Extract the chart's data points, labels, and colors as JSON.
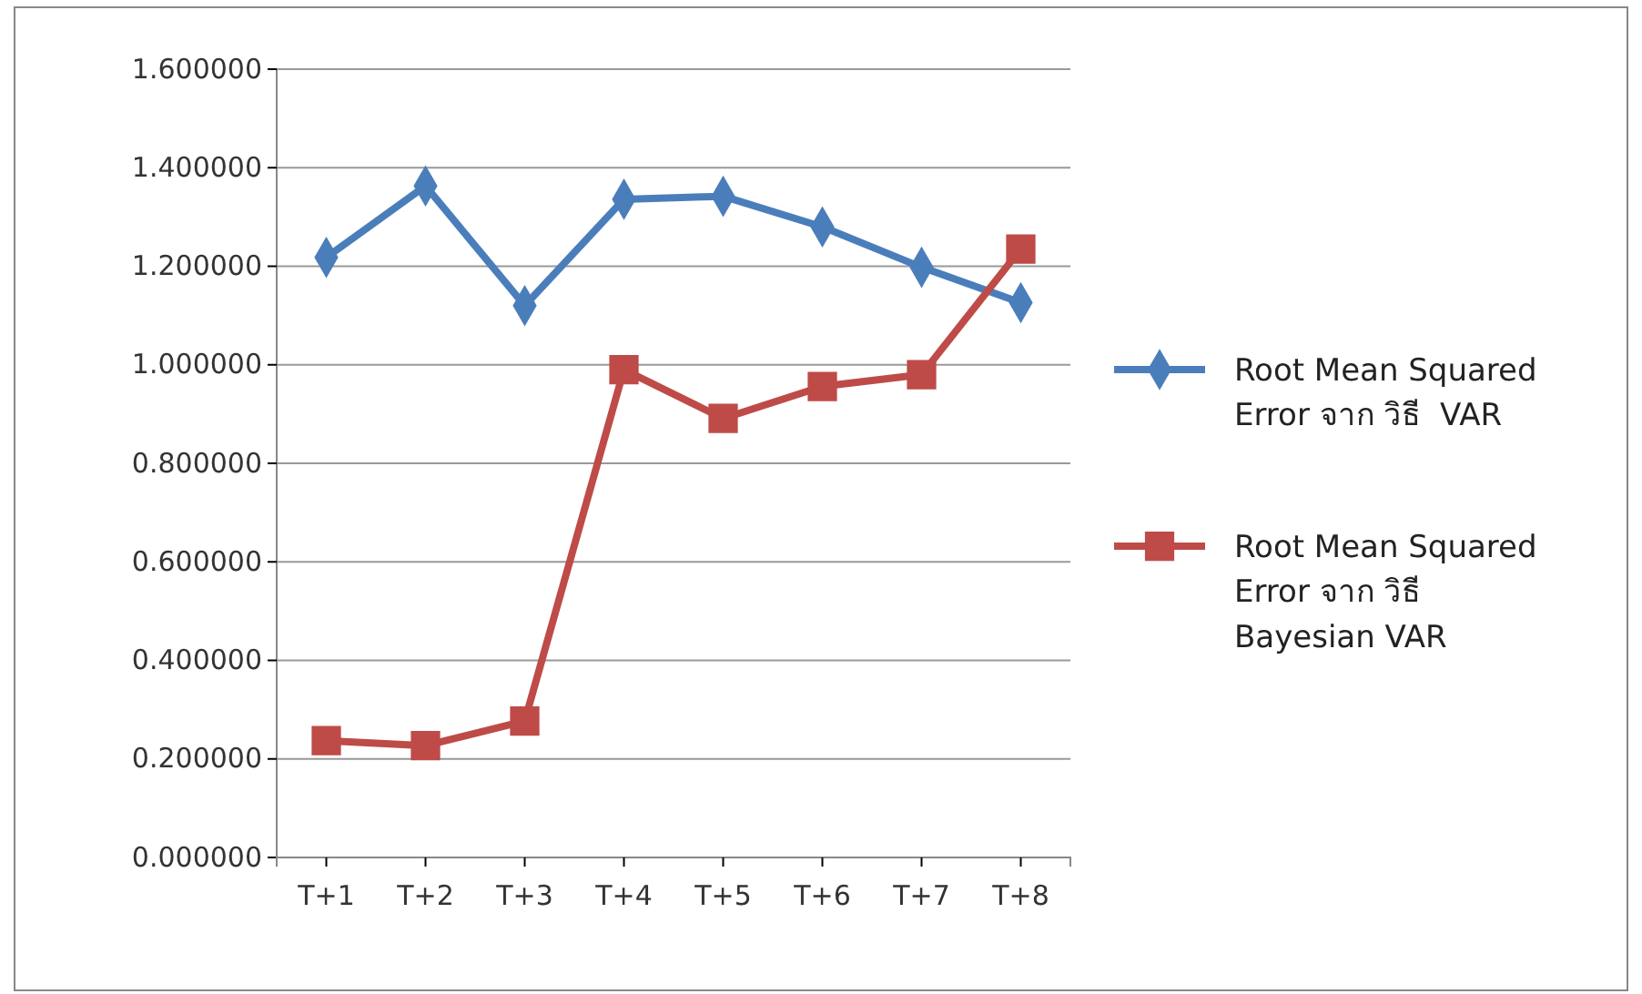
{
  "chart_data": {
    "type": "line",
    "categories": [
      "T+1",
      "T+2",
      "T+3",
      "T+4",
      "T+5",
      "T+6",
      "T+7",
      "T+8"
    ],
    "series": [
      {
        "name": "Root Mean Squared Error จาก วิธี  VAR",
        "color": "#4a7ebb",
        "marker": "diamond",
        "values": [
          1.218,
          1.363,
          1.12,
          1.336,
          1.342,
          1.28,
          1.198,
          1.126
        ]
      },
      {
        "name": "Root Mean Squared Error จาก วิธี  Bayesian VAR",
        "color": "#be4b48",
        "marker": "square",
        "values": [
          0.237,
          0.227,
          0.277,
          0.99,
          0.891,
          0.956,
          0.98,
          1.235
        ]
      }
    ],
    "ylim": [
      0,
      1.6
    ],
    "yticks": [
      {
        "value": 0,
        "label": "0.000000"
      },
      {
        "value": 0.2,
        "label": "0.200000"
      },
      {
        "value": 0.4,
        "label": "0.400000"
      },
      {
        "value": 0.6,
        "label": "0.600000"
      },
      {
        "value": 0.8,
        "label": "0.800000"
      },
      {
        "value": 1,
        "label": "1.000000"
      },
      {
        "value": 1.2,
        "label": "1.200000"
      },
      {
        "value": 1.4,
        "label": "1.400000"
      },
      {
        "value": 1.6,
        "label": "1.600000"
      }
    ],
    "grid": "y",
    "legend": "right",
    "line_style": "solid"
  }
}
